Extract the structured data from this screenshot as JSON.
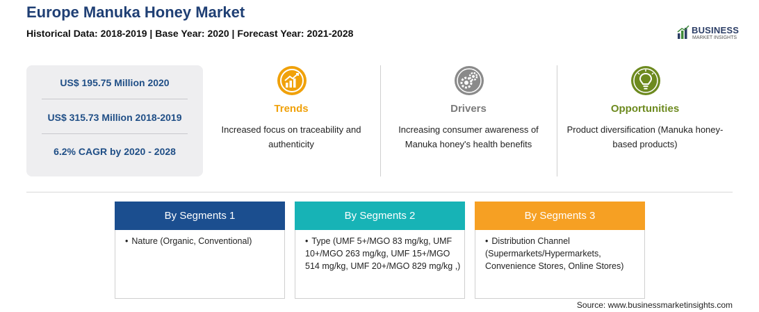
{
  "header": {
    "title": "Europe Manuka Honey Market",
    "subtitle": "Historical Data: 2018-2019 | Base Year: 2020 | Forecast Year: 2021-2028"
  },
  "logo": {
    "name": "BUSINESS",
    "tagline": "MARKET INSIGHTS",
    "icon": "chart-logo-icon",
    "color": "#2c3e66"
  },
  "stats": [
    "US$ 195.75 Million 2020",
    "US$ 315.73 Million 2018-2019",
    "6.2% CAGR by 2020 - 2028"
  ],
  "factors": [
    {
      "label": "Trends",
      "description": "Increased focus on traceability and authenticity",
      "icon": "growth-chart-icon",
      "color": "#f0a10a"
    },
    {
      "label": "Drivers",
      "description": "Increasing consumer awareness of Manuka honey's health benefits",
      "icon": "gears-icon",
      "color": "#7a7a7a"
    },
    {
      "label": "Opportunities",
      "description": "Product diversification (Manuka honey-based products)",
      "icon": "lightbulb-icon",
      "color": "#6d8a1f"
    }
  ],
  "segments": [
    {
      "title": "By Segments 1",
      "item": "Nature (Organic, Conventional)",
      "color": "#1b4e8f"
    },
    {
      "title": "By Segments 2",
      "item": "Type (UMF 5+/MGO 83 mg/kg, UMF 10+/MGO 263 mg/kg, UMF 15+/MGO 514 mg/kg, UMF 20+/MGO 829 mg/kg ,)",
      "color": "#17b3b6"
    },
    {
      "title": "By Segments 3",
      "item": "Distribution Channel (Supermarkets/Hypermarkets, Convenience Stores, Online Stores)",
      "color": "#f6a023"
    }
  ],
  "source": "Source: www.businessmarketinsights.com"
}
